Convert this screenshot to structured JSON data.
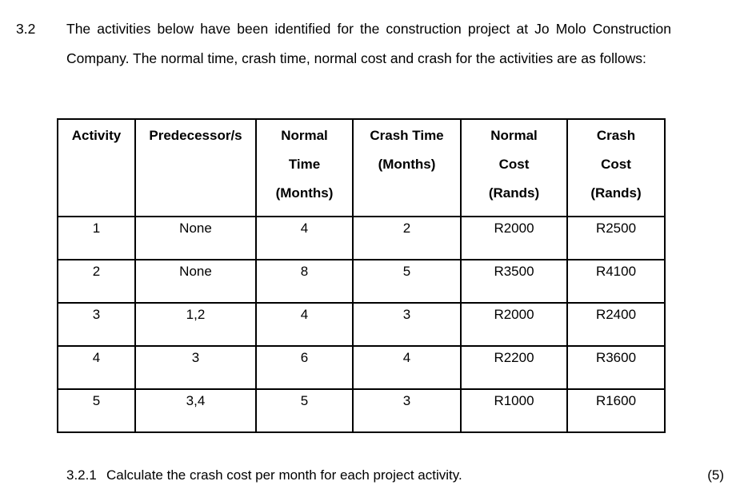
{
  "colors": {
    "background": "#ffffff",
    "text": "#000000",
    "table_border": "#000000"
  },
  "question": {
    "number": "3.2",
    "paragraph": "The activities below have been identified for the construction project at Jo Molo Construction Company. The normal time, crash time, normal cost and crash for the activities are as follows:"
  },
  "table": {
    "headers": [
      {
        "lines": [
          "Activity"
        ]
      },
      {
        "lines": [
          "Predecessor/s"
        ]
      },
      {
        "lines": [
          "Normal",
          "Time",
          "(Months)"
        ]
      },
      {
        "lines": [
          "Crash Time",
          "(Months)"
        ]
      },
      {
        "lines": [
          "Normal",
          "Cost",
          "(Rands)"
        ]
      },
      {
        "lines": [
          "Crash",
          "Cost",
          "(Rands)"
        ]
      }
    ],
    "rows": [
      {
        "activity": "1",
        "predecessors": "None",
        "normal_time": "4",
        "crash_time": "2",
        "normal_cost": "R2000",
        "crash_cost": "R2500"
      },
      {
        "activity": "2",
        "predecessors": "None",
        "normal_time": "8",
        "crash_time": "5",
        "normal_cost": "R3500",
        "crash_cost": "R4100"
      },
      {
        "activity": "3",
        "predecessors": "1,2",
        "normal_time": "4",
        "crash_time": "3",
        "normal_cost": "R2000",
        "crash_cost": "R2400"
      },
      {
        "activity": "4",
        "predecessors": "3",
        "normal_time": "6",
        "crash_time": "4",
        "normal_cost": "R2200",
        "crash_cost": "R3600"
      },
      {
        "activity": "5",
        "predecessors": "3,4",
        "normal_time": "5",
        "crash_time": "3",
        "normal_cost": "R1000",
        "crash_cost": "R1600"
      }
    ]
  },
  "sub_question": {
    "number": "3.2.1",
    "text": "Calculate the crash cost per month for each project activity.",
    "marks": "(5)"
  }
}
